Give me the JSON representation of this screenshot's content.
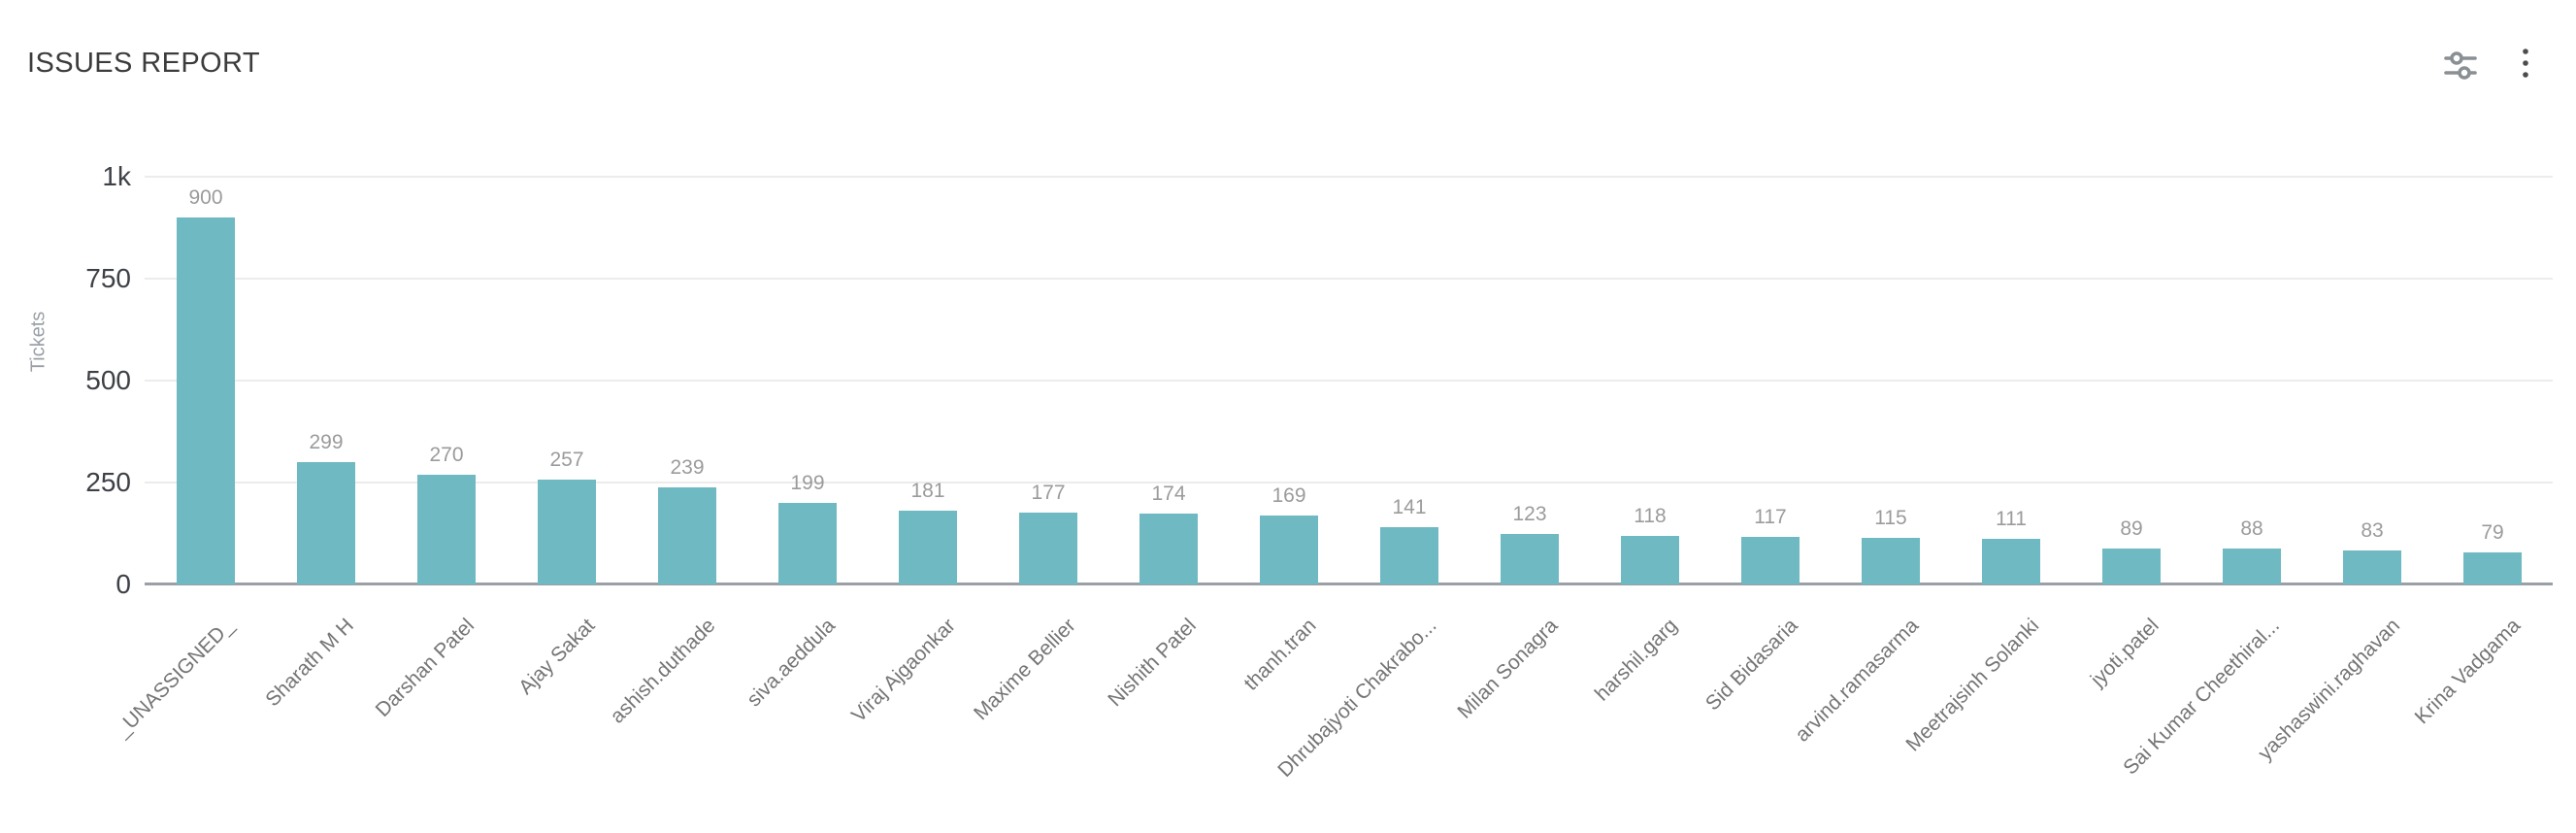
{
  "header": {
    "title": "ISSUES REPORT",
    "icons": [
      {
        "name": "chart-filter-icon",
        "glyph": "sliders"
      },
      {
        "name": "kebab-menu-icon",
        "glyph": "vertical-dots"
      }
    ]
  },
  "chart_data": {
    "type": "bar",
    "title": "ISSUES REPORT",
    "xlabel": "",
    "ylabel": "Tickets",
    "ylim": [
      0,
      1000
    ],
    "grid": true,
    "legend": "none",
    "bar_color": "#6fb9c2",
    "yticks": [
      {
        "v": 0,
        "label": "0"
      },
      {
        "v": 250,
        "label": "250"
      },
      {
        "v": 500,
        "label": "500"
      },
      {
        "v": 750,
        "label": "750"
      },
      {
        "v": 1000,
        "label": "1k"
      }
    ],
    "categories": [
      "_UNASSIGNED_",
      "Sharath M H",
      "Darshan Patel",
      "Ajay Sakat",
      "ashish.duthade",
      "siva.aeddula",
      "Viraj Ajgaonkar",
      "Maxime Bellier",
      "Nishith Patel",
      "thanh.tran",
      "Dhrubajyoti Chakrabo...",
      "Milan Sonagra",
      "harshil.garg",
      "Sid Bidasaria",
      "arvind.ramasarma",
      "Meetrajsinh Solanki",
      "jyoti.patel",
      "Sai Kumar Cheethiral...",
      "yashaswini.raghavan",
      "Krina Vadgama"
    ],
    "values": [
      900,
      299,
      270,
      257,
      239,
      199,
      181,
      177,
      174,
      169,
      141,
      123,
      118,
      117,
      115,
      111,
      89,
      88,
      83,
      79
    ]
  },
  "colors": {
    "bar": "#6fb9c2",
    "grid_line": "#ececec",
    "axis_line": "#9aa0a5",
    "tick_label": "#3d4045",
    "value_label": "#9b9b9b",
    "category_label": "#757575",
    "title": "#3c3c3c",
    "icon_gray": "#8a8f94",
    "kebab_gray": "#4c4c4c"
  }
}
